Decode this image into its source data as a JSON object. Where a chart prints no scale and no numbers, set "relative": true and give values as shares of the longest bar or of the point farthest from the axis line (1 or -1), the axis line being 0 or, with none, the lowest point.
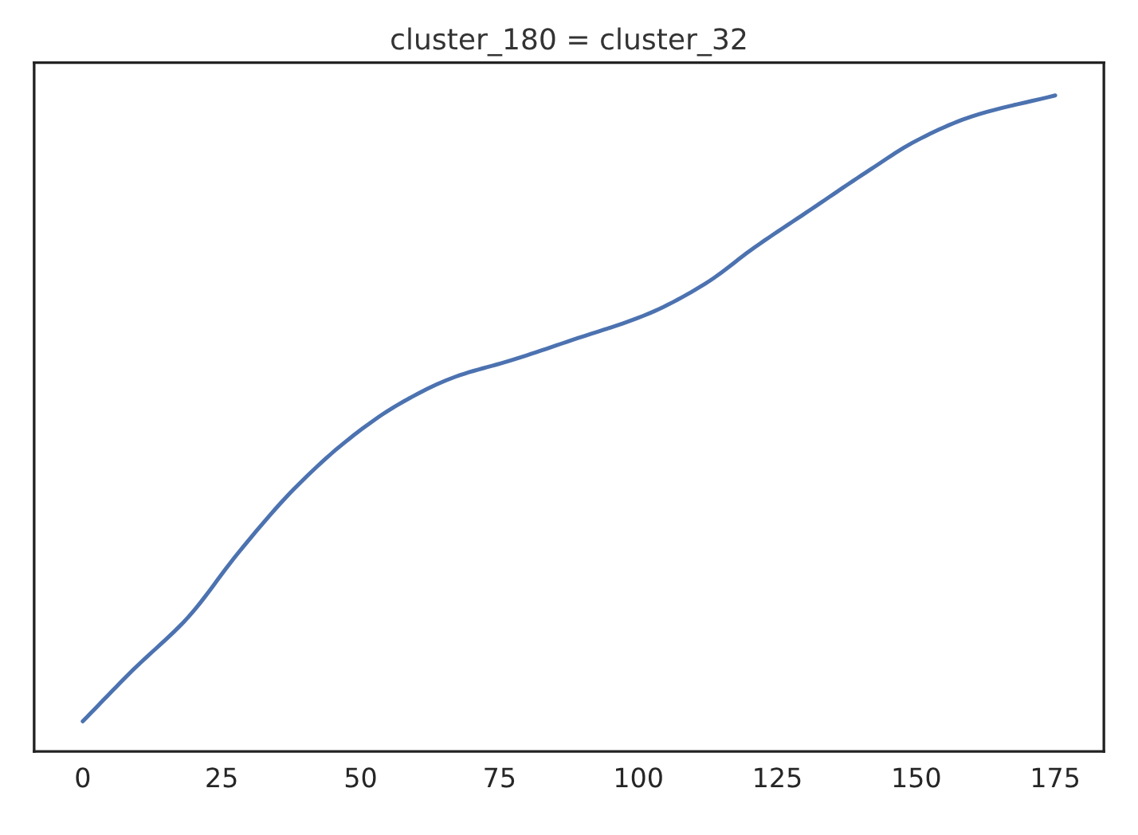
{
  "chart_data": {
    "type": "line",
    "title": "cluster_180 = cluster_32",
    "relative": true,
    "x": [
      0,
      9,
      19,
      28,
      38,
      48,
      57,
      67,
      77,
      88,
      102,
      112,
      121,
      131,
      141,
      150,
      160,
      175
    ],
    "series": [
      {
        "color": "#4c72b0",
        "values": [
          0.046,
          0.124,
          0.205,
          0.303,
          0.4,
          0.477,
          0.53,
          0.571,
          0.596,
          0.627,
          0.668,
          0.713,
          0.769,
          0.826,
          0.883,
          0.931,
          0.968,
          1
        ]
      }
    ],
    "xlim": [
      -8.75,
      183.75
    ],
    "xticks": [
      0,
      25,
      50,
      75,
      100,
      125,
      150,
      175
    ],
    "grid": false,
    "tick_labels": "x"
  }
}
